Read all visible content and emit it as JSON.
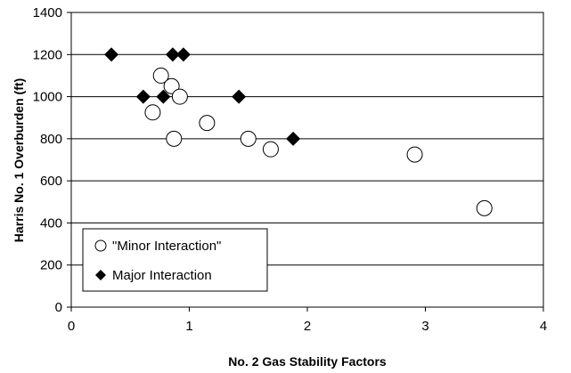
{
  "chart_data": {
    "type": "scatter",
    "title": "",
    "xlabel": "No. 2 Gas Stability Factors",
    "ylabel": "Harris No. 1 Overburden (ft)",
    "xlim": [
      0,
      4
    ],
    "ylim": [
      0,
      1400
    ],
    "x_ticks": [
      0,
      1,
      2,
      3,
      4
    ],
    "y_ticks": [
      0,
      200,
      400,
      600,
      800,
      1000,
      1200,
      1400
    ],
    "grid": "horizontal",
    "legend_position": "lower-left",
    "series": [
      {
        "name": "\"Minor Interaction\"",
        "marker": "open-circle",
        "points": [
          {
            "x": 0.76,
            "y": 1100
          },
          {
            "x": 0.85,
            "y": 1050
          },
          {
            "x": 0.92,
            "y": 1000
          },
          {
            "x": 0.69,
            "y": 925
          },
          {
            "x": 1.15,
            "y": 875
          },
          {
            "x": 0.87,
            "y": 800
          },
          {
            "x": 1.5,
            "y": 800
          },
          {
            "x": 1.69,
            "y": 750
          },
          {
            "x": 2.91,
            "y": 725
          },
          {
            "x": 3.5,
            "y": 470
          }
        ]
      },
      {
        "name": "Major Interaction",
        "marker": "filled-diamond",
        "points": [
          {
            "x": 0.34,
            "y": 1200
          },
          {
            "x": 0.86,
            "y": 1200
          },
          {
            "x": 0.95,
            "y": 1200
          },
          {
            "x": 0.61,
            "y": 1000
          },
          {
            "x": 0.78,
            "y": 1000
          },
          {
            "x": 1.42,
            "y": 1000
          },
          {
            "x": 1.88,
            "y": 800
          }
        ]
      }
    ]
  }
}
